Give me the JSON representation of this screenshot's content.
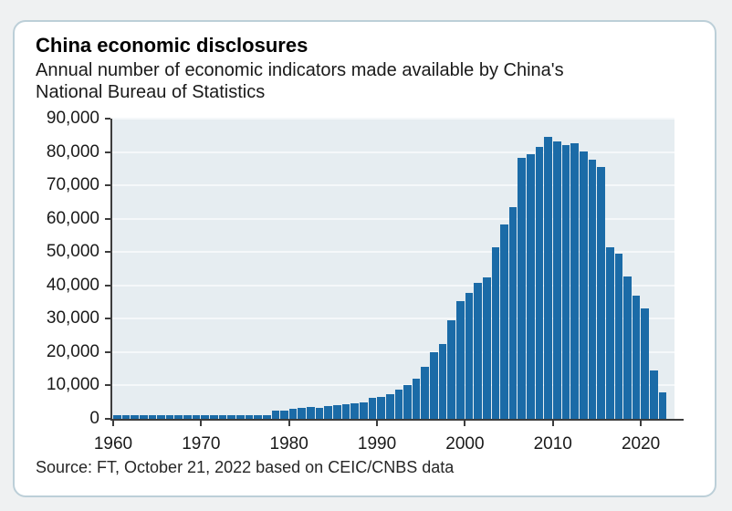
{
  "header": {
    "title": "China economic disclosures",
    "subtitle_line1": "Annual number of economic indicators made available by China's",
    "subtitle_line2": "National Bureau of Statistics"
  },
  "source_note": "Source: FT, October 21, 2022 based on CEIC/CNBS data",
  "colors": {
    "bar": "#1b6ba7",
    "plot_background": "#e6edf1",
    "gridline": "#f5f8fa",
    "axis": "#3d3d3d",
    "card_border": "#bccfd8",
    "page_background": "#eff1f2"
  },
  "chart_data": {
    "type": "bar",
    "title": "China economic disclosures",
    "subtitle": "Annual number of economic indicators made available by China's National Bureau of Statistics",
    "xlabel": "",
    "ylabel": "",
    "ylim": [
      0,
      90000
    ],
    "grid": true,
    "legend": false,
    "ytick_labels": [
      "0",
      "10,000",
      "20,000",
      "30,000",
      "40,000",
      "50,000",
      "60,000",
      "70,000",
      "80,000",
      "90,000"
    ],
    "ytick_values": [
      0,
      10000,
      20000,
      30000,
      40000,
      50000,
      60000,
      70000,
      80000,
      90000
    ],
    "xtick_years": [
      1960,
      1970,
      1980,
      1990,
      2000,
      2010,
      2020
    ],
    "x": [
      1960,
      1961,
      1962,
      1963,
      1964,
      1965,
      1966,
      1967,
      1968,
      1969,
      1970,
      1971,
      1972,
      1973,
      1974,
      1975,
      1976,
      1977,
      1978,
      1979,
      1980,
      1981,
      1982,
      1983,
      1984,
      1985,
      1986,
      1987,
      1988,
      1989,
      1990,
      1991,
      1992,
      1993,
      1994,
      1995,
      1996,
      1997,
      1998,
      1999,
      2000,
      2001,
      2002,
      2003,
      2004,
      2005,
      2006,
      2007,
      2008,
      2009,
      2010,
      2011,
      2012,
      2013,
      2014,
      2015,
      2016,
      2017,
      2018,
      2019,
      2020,
      2021,
      2022
    ],
    "values": [
      1100,
      1100,
      1100,
      1150,
      1100,
      1100,
      1100,
      1100,
      1150,
      1100,
      1100,
      1150,
      1100,
      1100,
      1150,
      1100,
      1150,
      1200,
      2500,
      2600,
      3100,
      3200,
      3600,
      3400,
      3900,
      4200,
      4400,
      4600,
      5000,
      6200,
      6500,
      7300,
      8700,
      10000,
      12000,
      15500,
      19900,
      22500,
      29500,
      35400,
      37700,
      40900,
      42300,
      51400,
      58300,
      63500,
      78200,
      79300,
      81600,
      84500,
      83100,
      82000,
      82700,
      80200,
      77600,
      75600,
      51400,
      49600,
      42700,
      36800,
      33200,
      14400,
      8000
    ],
    "source": "Source: FT, October 21, 2022 based on CEIC/CNBS data"
  }
}
